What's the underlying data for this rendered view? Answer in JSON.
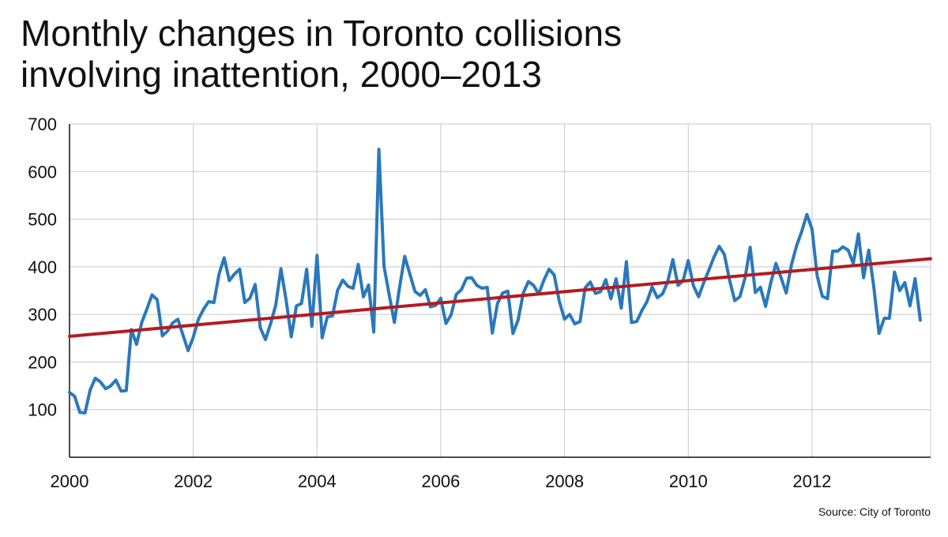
{
  "title_line1": "Monthly changes in Toronto collisions",
  "title_line2": "involving inattention, 2000–2013",
  "source": "Source: City of Toronto",
  "colors": {
    "series": "#2a78bb",
    "trend": "#b31b22",
    "grid": "#c8c8c8",
    "axis": "#111111"
  },
  "chart_data": {
    "type": "line",
    "title": "Monthly changes in Toronto collisions involving inattention, 2000–2013",
    "xlabel": "",
    "ylabel": "",
    "x_range": [
      "2000-01",
      "2013-12"
    ],
    "ylim": [
      0,
      700
    ],
    "y_ticks": [
      100,
      200,
      300,
      400,
      500,
      600,
      700
    ],
    "x_ticks": [
      "2000",
      "2002",
      "2004",
      "2006",
      "2008",
      "2010",
      "2012"
    ],
    "grid": true,
    "series": [
      {
        "start": "2000-01",
        "frequency": "monthly",
        "values": [
          136,
          128,
          94,
          93,
          141,
          166,
          158,
          144,
          150,
          162,
          139,
          140,
          268,
          237,
          283,
          311,
          341,
          331,
          255,
          265,
          282,
          290,
          257,
          224,
          252,
          290,
          311,
          327,
          325,
          385,
          419,
          371,
          385,
          395,
          325,
          334,
          363,
          272,
          247,
          281,
          320,
          396,
          331,
          253,
          318,
          323,
          395,
          275,
          424,
          251,
          295,
          297,
          351,
          372,
          359,
          355,
          405,
          337,
          362,
          263,
          647,
          401,
          341,
          283,
          356,
          422,
          385,
          348,
          340,
          352,
          316,
          319,
          334,
          281,
          299,
          342,
          352,
          376,
          377,
          361,
          355,
          357,
          261,
          323,
          345,
          349,
          260,
          288,
          345,
          369,
          361,
          343,
          372,
          395,
          383,
          327,
          290,
          300,
          280,
          285,
          356,
          368,
          344,
          348,
          373,
          333,
          375,
          313,
          411,
          283,
          285,
          308,
          327,
          358,
          335,
          343,
          368,
          415,
          361,
          371,
          413,
          360,
          337,
          367,
          393,
          421,
          443,
          426,
          373,
          329,
          337,
          376,
          441,
          346,
          357,
          317,
          367,
          407,
          377,
          345,
          404,
          444,
          474,
          510,
          479,
          381,
          338,
          333,
          433,
          433,
          442,
          435,
          407,
          469,
          377,
          435,
          356,
          260,
          292,
          292,
          389,
          350,
          367,
          318,
          375,
          288
        ]
      },
      {
        "name": "Trend",
        "type": "linear",
        "from": [
          "2000-01",
          254
        ],
        "to": [
          "2013-12",
          417
        ]
      }
    ]
  }
}
